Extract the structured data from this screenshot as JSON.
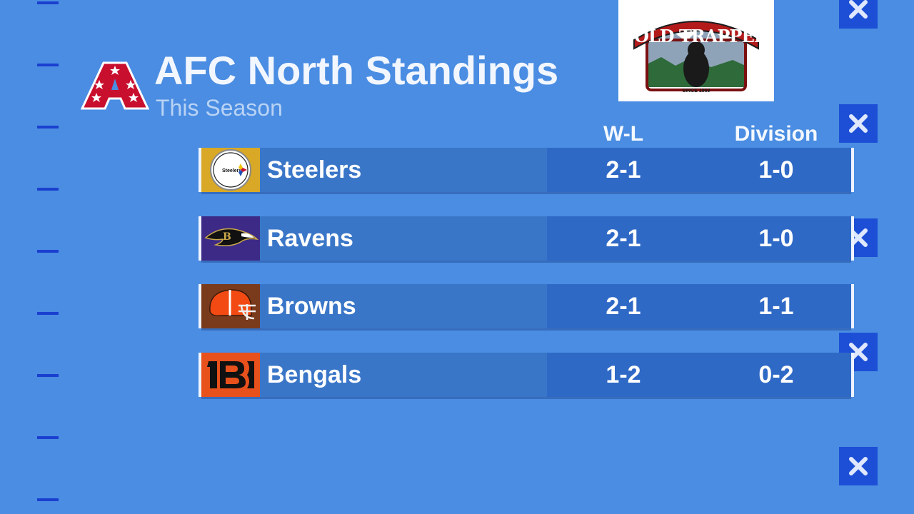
{
  "header": {
    "title": "AFC North Standings",
    "subtitle": "This Season"
  },
  "sponsor": {
    "name": "OLD TRAPPER",
    "tagline": "SINCE 1969"
  },
  "table": {
    "columns": [
      "W-L",
      "Division"
    ],
    "rows": [
      {
        "team": "Steelers",
        "logo": "steelers-logo",
        "wl": "2-1",
        "division": "1-0",
        "tile_color": "#d8a826"
      },
      {
        "team": "Ravens",
        "logo": "ravens-logo",
        "wl": "2-1",
        "division": "1-0",
        "tile_color": "#3d2a86"
      },
      {
        "team": "Browns",
        "logo": "browns-logo",
        "wl": "2-1",
        "division": "1-1",
        "tile_color": "#7a3a1c"
      },
      {
        "team": "Bengals",
        "logo": "bengals-logo",
        "wl": "1-2",
        "division": "0-2",
        "tile_color": "#e8501c"
      }
    ]
  },
  "colors": {
    "background": "#4a8de2",
    "name_cell": "#3a76c8",
    "stat_cell": "#2f69c6",
    "accent": "#1d4fd6"
  }
}
